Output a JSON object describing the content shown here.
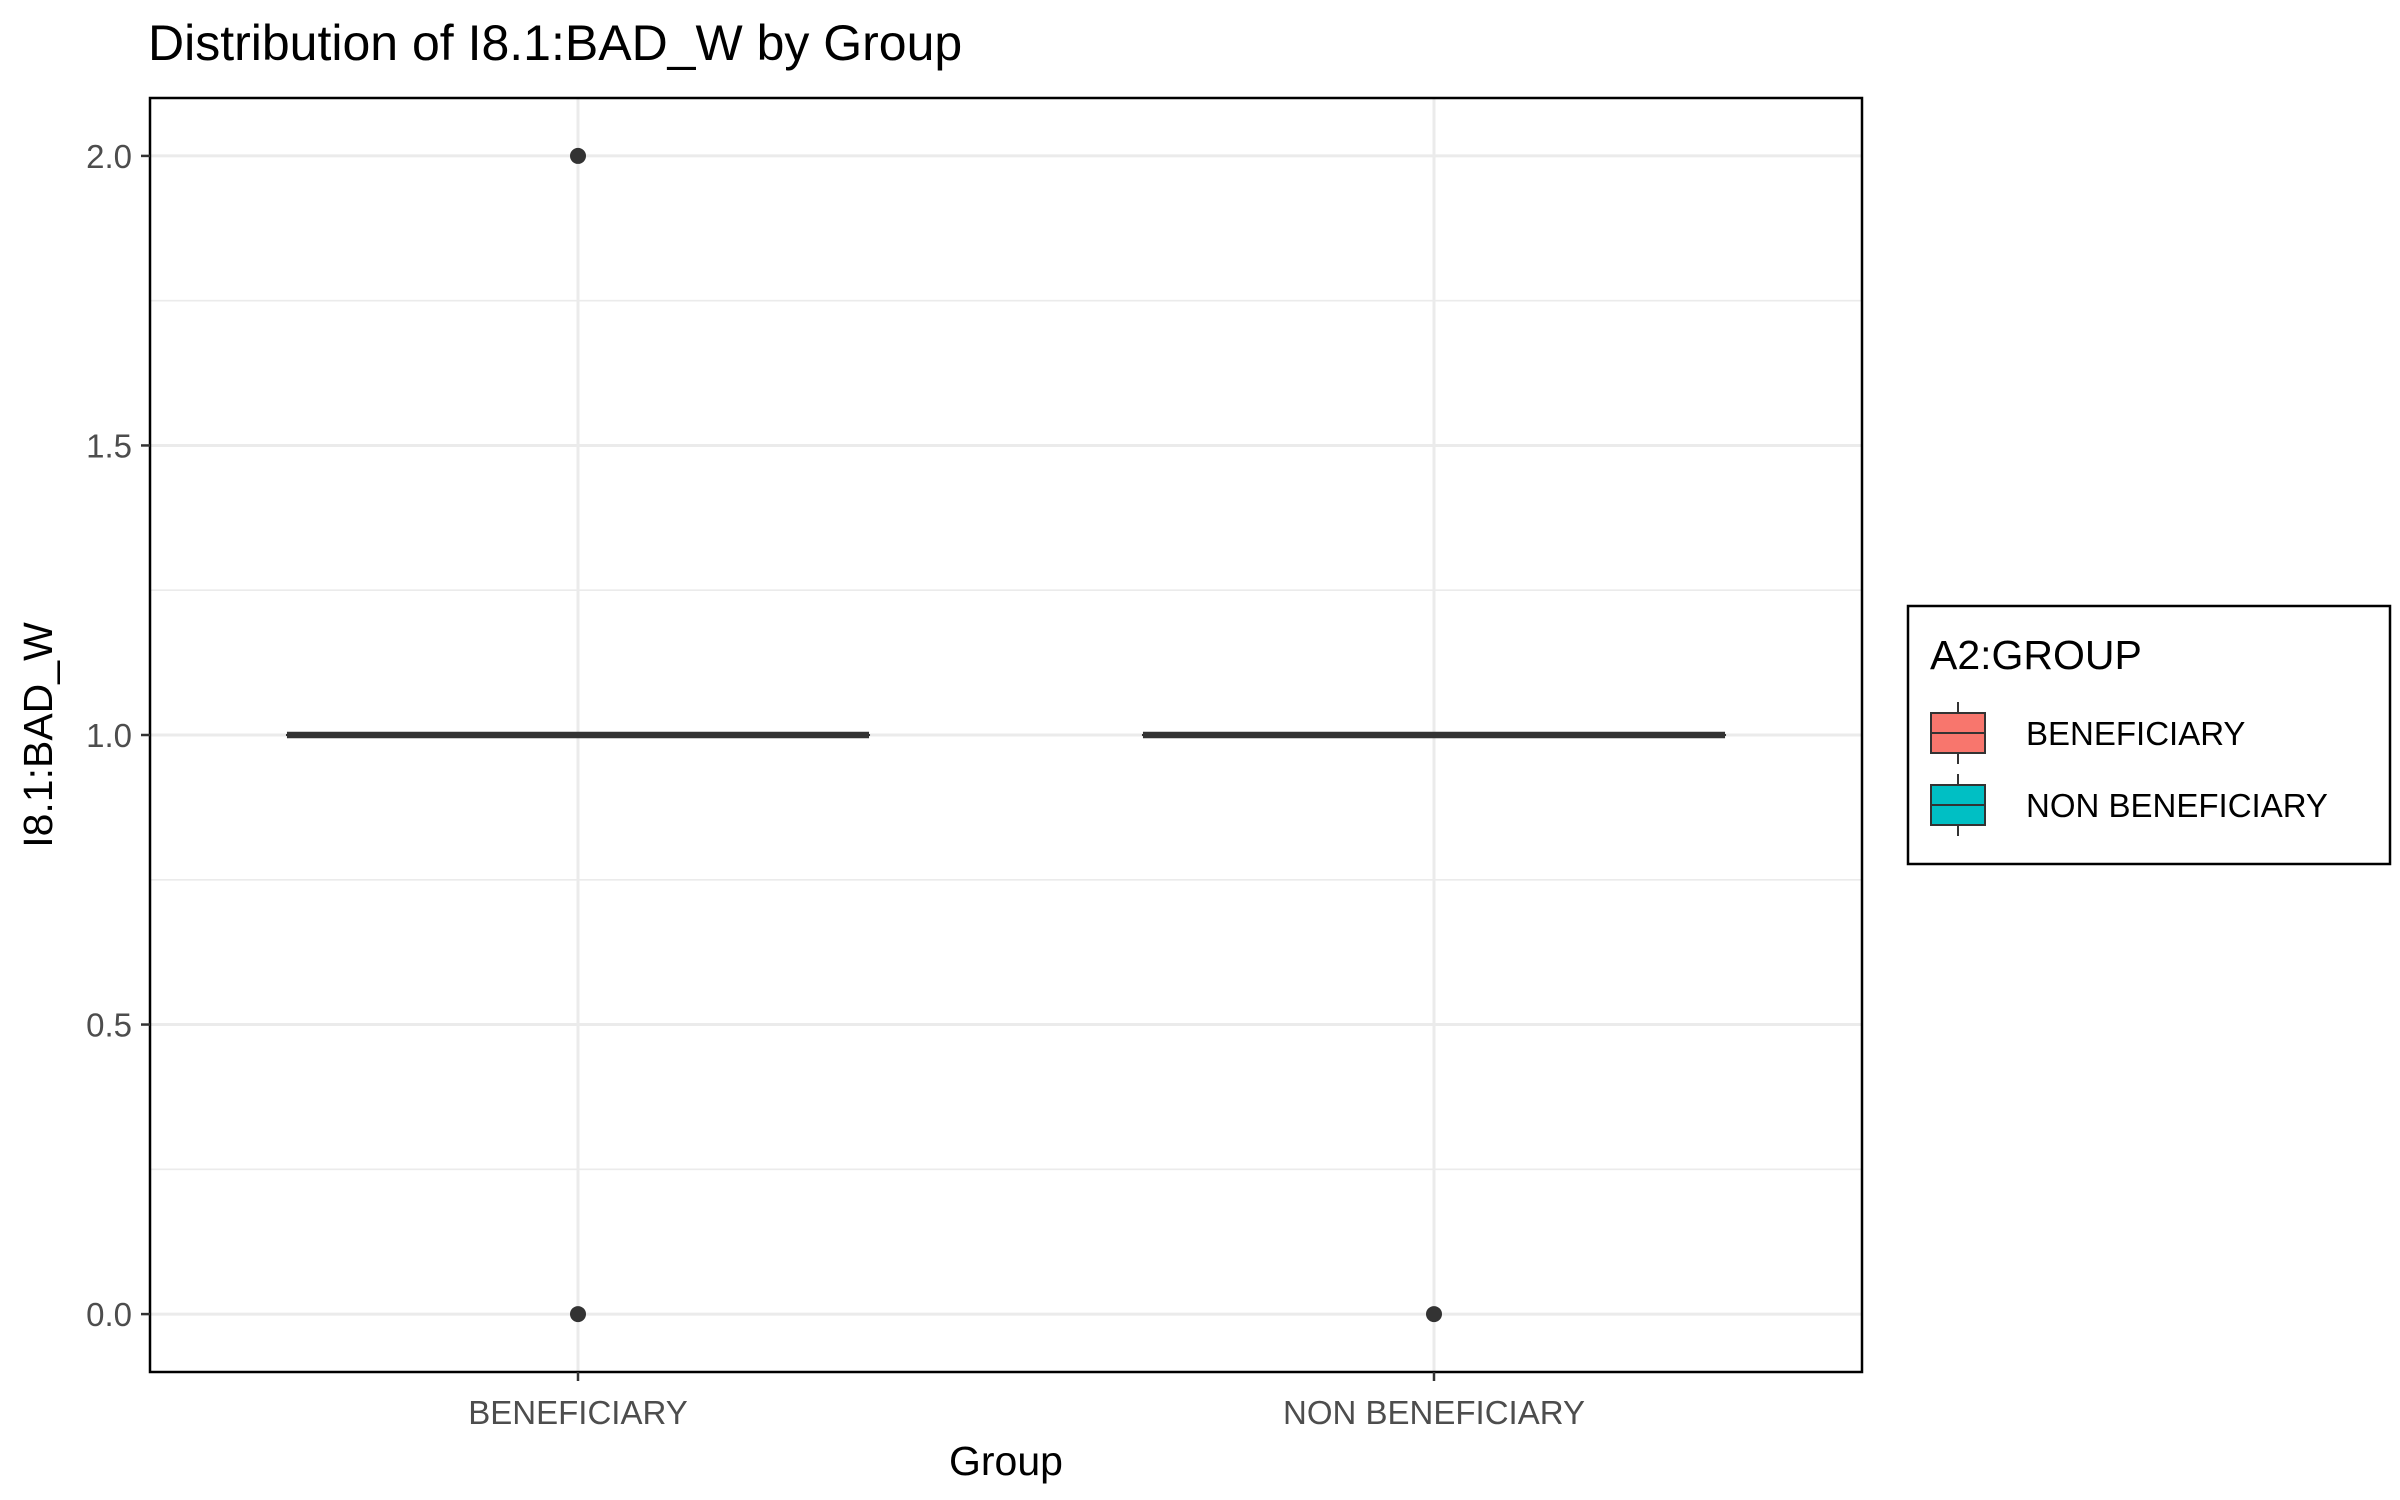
{
  "chart_data": {
    "type": "box",
    "title": "Distribution of I8.1:BAD_W by Group",
    "xlabel": "Group",
    "ylabel": "I8.1:BAD_W",
    "categories": [
      "BENEFICIARY",
      "NON BENEFICIARY"
    ],
    "ylim": [
      -0.1,
      2.1
    ],
    "yticks": [
      0.0,
      0.5,
      1.0,
      1.5,
      2.0
    ],
    "ytick_labels": [
      "0.0",
      "0.5",
      "1.0",
      "1.5",
      "2.0"
    ],
    "grid": true,
    "legend": {
      "title": "A2:GROUP",
      "position": "right",
      "entries": [
        {
          "label": "BENEFICIARY",
          "color": "#F8766D"
        },
        {
          "label": "NON BENEFICIARY",
          "color": "#00BFC4"
        }
      ]
    },
    "series": [
      {
        "category": "BENEFICIARY",
        "color": "#F8766D",
        "min": 1.0,
        "q1": 1.0,
        "median": 1.0,
        "q3": 1.0,
        "max": 1.0,
        "outliers": [
          2.0,
          0.0
        ]
      },
      {
        "category": "NON BENEFICIARY",
        "color": "#00BFC4",
        "min": 1.0,
        "q1": 1.0,
        "median": 1.0,
        "q3": 1.0,
        "max": 1.0,
        "outliers": [
          0.0
        ]
      }
    ]
  }
}
